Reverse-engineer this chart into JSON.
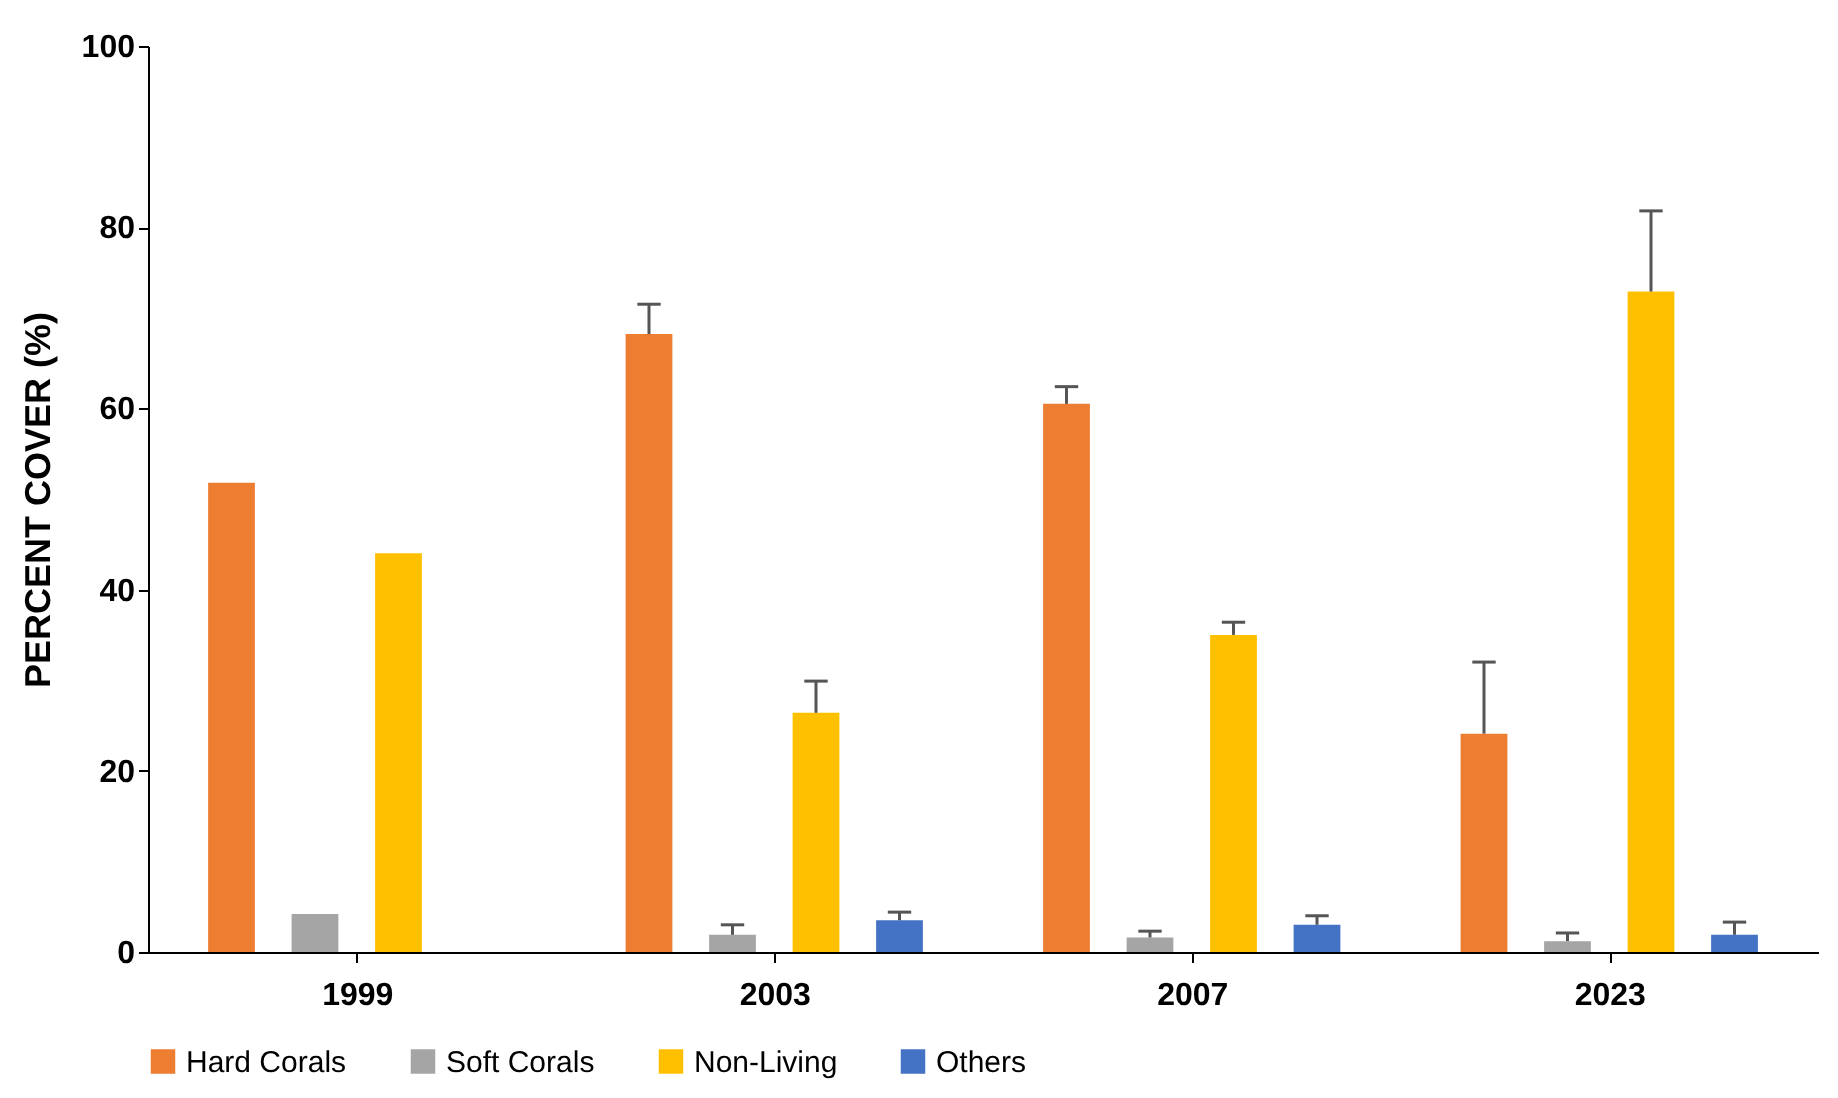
{
  "chart_data": {
    "type": "bar",
    "ylabel": "PERCENT COVER (%)",
    "categories": [
      "1999",
      "2003",
      "2007",
      "2023"
    ],
    "series": [
      {
        "name": "Hard Corals",
        "color": "#ed7d31",
        "values": [
          51.8,
          68.2,
          60.5,
          24.1
        ],
        "errors": [
          null,
          3.3,
          1.9,
          7.9
        ]
      },
      {
        "name": "Soft Corals",
        "color": "#a5a5a5",
        "values": [
          4.2,
          1.9,
          1.6,
          1.2
        ],
        "errors": [
          null,
          1.1,
          0.7,
          0.9
        ]
      },
      {
        "name": "Non-Living",
        "color": "#ffc000",
        "values": [
          44.0,
          26.4,
          35.0,
          72.9
        ],
        "errors": [
          null,
          3.5,
          1.4,
          8.9
        ]
      },
      {
        "name": "Others",
        "color": "#4472c4",
        "values": [
          null,
          3.5,
          3.0,
          1.9
        ],
        "errors": [
          null,
          0.9,
          1.0,
          1.4
        ]
      }
    ],
    "ylim": [
      0,
      100
    ],
    "yticks": [
      0,
      20,
      40,
      60,
      80,
      100
    ],
    "grid": false,
    "legend": "bottom"
  }
}
